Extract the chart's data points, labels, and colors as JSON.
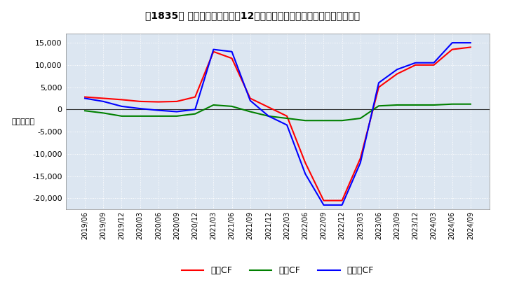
{
  "title": "［1835］ キャッシュフローの12か月移動合計の対前年同期増減額の推移",
  "ylabel": "（百万円）",
  "ylim": [
    -22500,
    17000
  ],
  "yticks": [
    -20000,
    -15000,
    -10000,
    -5000,
    0,
    5000,
    10000,
    15000
  ],
  "x_labels": [
    "2019/06",
    "2019/09",
    "2019/12",
    "2020/03",
    "2020/06",
    "2020/09",
    "2020/12",
    "2021/03",
    "2021/06",
    "2021/09",
    "2021/12",
    "2022/03",
    "2022/06",
    "2022/09",
    "2022/12",
    "2023/03",
    "2023/06",
    "2023/09",
    "2023/12",
    "2024/03",
    "2024/06",
    "2024/09"
  ],
  "operating_cf": [
    2800,
    2500,
    2200,
    1800,
    1700,
    1800,
    2800,
    13000,
    11500,
    2500,
    500,
    -1500,
    -12000,
    -20500,
    -20500,
    -11000,
    5000,
    8000,
    10000,
    10000,
    13500,
    14000
  ],
  "investing_cf": [
    -300,
    -800,
    -1500,
    -1500,
    -1500,
    -1500,
    -1000,
    1000,
    700,
    -500,
    -1500,
    -2000,
    -2500,
    -2500,
    -2500,
    -2000,
    800,
    1000,
    1000,
    1000,
    1200,
    1200
  ],
  "free_cf": [
    2500,
    1800,
    700,
    200,
    -200,
    -500,
    0,
    13500,
    13000,
    2000,
    -1500,
    -3500,
    -14500,
    -21500,
    -21500,
    -12000,
    6000,
    9000,
    10500,
    10500,
    15000,
    15000
  ],
  "operating_color": "#ff0000",
  "investing_color": "#008000",
  "free_color": "#0000ff",
  "bg_color": "#ffffff",
  "plot_bg_color": "#dce6f1",
  "grid_color": "#ffffff"
}
